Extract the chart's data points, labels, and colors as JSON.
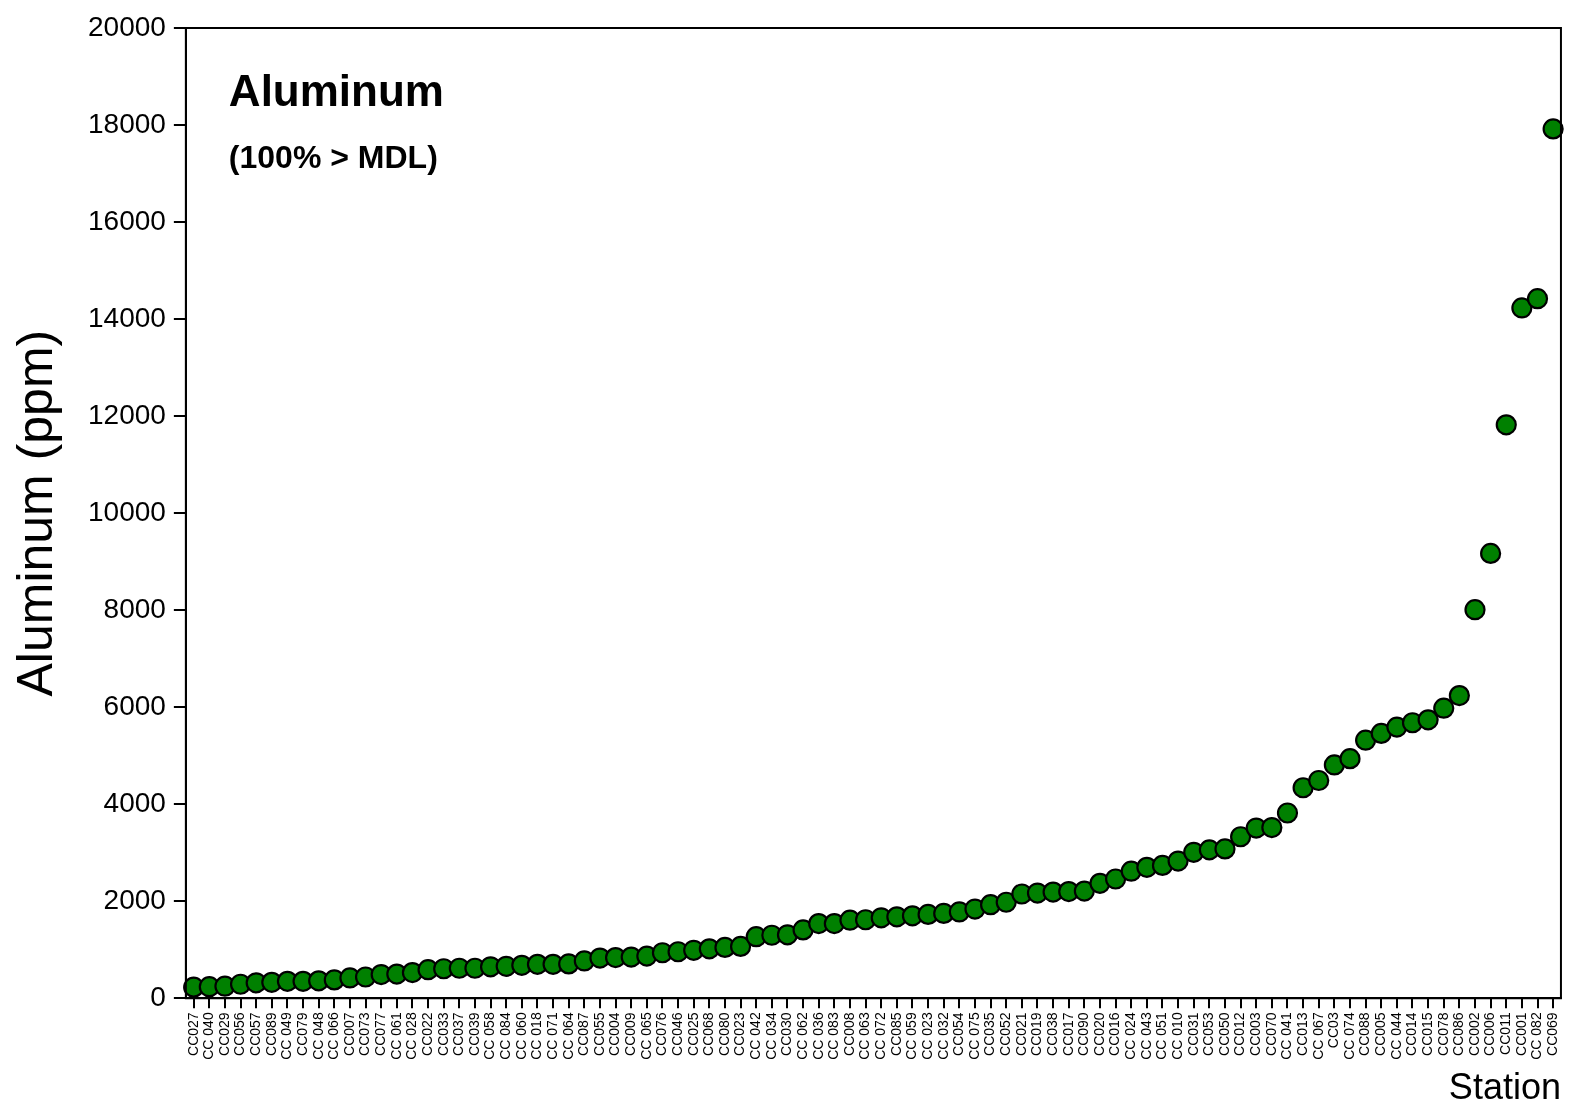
{
  "chart_data": {
    "type": "scatter",
    "title": "Aluminum",
    "subtitle": "(100% > MDL)",
    "xlabel": "Station",
    "ylabel": "Aluminum (ppm)",
    "categories": [
      "CC027",
      "CC 040",
      "CC029",
      "CC056",
      "CC057",
      "CC089",
      "CC 049",
      "CC079",
      "CC 048",
      "CC 066",
      "CC007",
      "CC073",
      "CC077",
      "CC 061",
      "CC 028",
      "CC022",
      "CC033",
      "CC037",
      "CC039",
      "CC 058",
      "CC 084",
      "CC 060",
      "CC 018",
      "CC 071",
      "CC 064",
      "CC087",
      "CC055",
      "CC004",
      "CC009",
      "CC 065",
      "CC076",
      "CC046",
      "CC025",
      "CC068",
      "CC080",
      "CC023",
      "CC 042",
      "CC 034",
      "CC030",
      "CC 062",
      "CC 036",
      "CC 083",
      "CC008",
      "CC 063",
      "CC 072",
      "CC085",
      "CC 059",
      "CC 023",
      "CC 032",
      "CC054",
      "CC 075",
      "CC035",
      "CC052",
      "CC021",
      "CC019",
      "CC038",
      "CC017",
      "CC090",
      "CC020",
      "CC016",
      "CC 024",
      "CC 043",
      "CC 051",
      "CC 010",
      "CC031",
      "CC053",
      "CC050",
      "CC012",
      "CC003",
      "CC070",
      "CC 041",
      "CC013",
      "CC 067",
      "CC03",
      "CC 074",
      "CC088",
      "CC005",
      "CC 044",
      "CC014",
      "CC015",
      "CC078",
      "CC086",
      "CC002",
      "CC006",
      "CC011",
      "CC001",
      "CC 082",
      "CC069"
    ],
    "series": [
      {
        "color": "#008000",
        "values": [
          230,
          240,
          250,
          290,
          320,
          330,
          350,
          350,
          360,
          380,
          420,
          440,
          490,
          500,
          530,
          590,
          610,
          620,
          620,
          650,
          660,
          680,
          700,
          700,
          710,
          770,
          830,
          840,
          850,
          870,
          940,
          960,
          990,
          1020,
          1050,
          1070,
          1270,
          1300,
          1310,
          1410,
          1540,
          1540,
          1610,
          1620,
          1660,
          1680,
          1700,
          1730,
          1750,
          1780,
          1840,
          1930,
          1980,
          2150,
          2170,
          2190,
          2200,
          2210,
          2370,
          2460,
          2620,
          2700,
          2740,
          2830,
          3010,
          3060,
          3080,
          3330,
          3510,
          3520,
          3820,
          4340,
          4490,
          4810,
          4940,
          5320,
          5460,
          5590,
          5680,
          5740,
          5980,
          6240,
          8010,
          9170,
          11820,
          14230,
          14420,
          17920
        ]
      }
    ],
    "ylim": [
      0,
      20000
    ],
    "yticks": [
      0,
      2000,
      4000,
      6000,
      8000,
      10000,
      12000,
      14000,
      16000,
      18000,
      20000
    ],
    "grid": false,
    "legend": false,
    "marker": "circle"
  }
}
